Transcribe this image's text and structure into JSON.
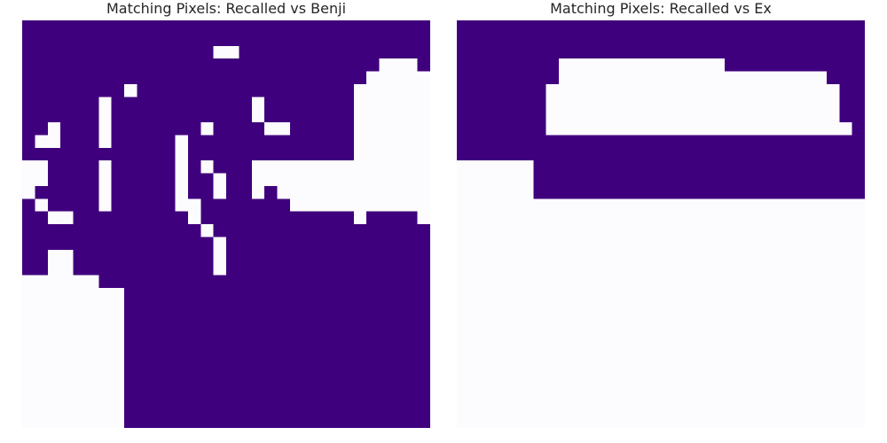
{
  "chart_data": [
    {
      "type": "heatmap",
      "title": "Matching Pixels: Recalled vs Benji",
      "colors": {
        "match": "#3f007d",
        "mismatch": "#fcfbfd"
      },
      "rows": 32,
      "cols": 32,
      "grid": [
        "11111111111111111111111111111111",
        "11111111111111111111111111111111",
        "11111111111111100111111111111111",
        "11111111111111111111111111110001",
        "11111111111111111111111111100000",
        "11111111711111111111111111000000",
        "11111101111111111101111111000000",
        "11111101111111111101111111000000",
        "11011101111111011110011111000000",
        "10011101111101111111111111000000",
        "11111111111101111111111111000000",
        "00111101111101011100000000000000",
        "00111101111101101100000000000000",
        "01111101111101101101000000000000",
        "10111101111100111111100000000000",
        "11001111111110111111111111011110",
        "11111111111111011111111111111111",
        "11111111111111101111111111111111",
        "11001111111111101111111111111111",
        "11001111111111101111111111111111",
        "00000011111111111111111111111111",
        "00000000111111111111111111111111",
        "00000000111111111111111111111111",
        "00000000111111111111111111111111",
        "00000000111111111111111111111111",
        "00000000111111111111111111111111",
        "00000000111111111111111111111111",
        "00000000111111111111111111111111",
        "00000000111111111111111111111111",
        "00000000111111111111111111111111",
        "00000000111111111111111111111111",
        "00000000111111111111111111111111"
      ]
    },
    {
      "type": "heatmap",
      "title": "Matching Pixels: Recalled vs Ex",
      "colors": {
        "match": "#3f007d",
        "mismatch": "#fcfbfd"
      },
      "rows": 32,
      "cols": 32,
      "grid": [
        "11111111111111111111111111111111",
        "11111111111111111111111111111111",
        "11111111111111111111111111111111",
        "11111111000000000000011111111111",
        "11111111000000000000000000000111",
        "11111110000000000000000000000011",
        "11111110000000000000000000000011",
        "11111110000000000000000000000011",
        "11111110000000000000000000000001",
        "11111111111111111111111111111111",
        "11111111111111111111111111111111",
        "00000011111111111111111111111111",
        "00000011111111111111111111111111",
        "00000011111111111111111111111111",
        "00000000000000000000000000000000",
        "00000000000000000000000000000000",
        "00000000000000000000000000000000",
        "00000000000000000000000000000000",
        "00000000000000000000000000000000",
        "00000000000000000000000000000000",
        "00000000000000000000000000000000",
        "00000000000000000000000000000000",
        "00000000000000000000000000000000",
        "00000000000000000000000000000000",
        "00000000000000000000000000000000",
        "00000000000000000000000000000000",
        "00000000000000000000000000000000",
        "00000000000000000000000000000000",
        "00000000000000000000000000000000",
        "00000000000000000000000000000000",
        "00000000000000000000000000000000",
        "00000000000000000000000000000000"
      ]
    }
  ]
}
